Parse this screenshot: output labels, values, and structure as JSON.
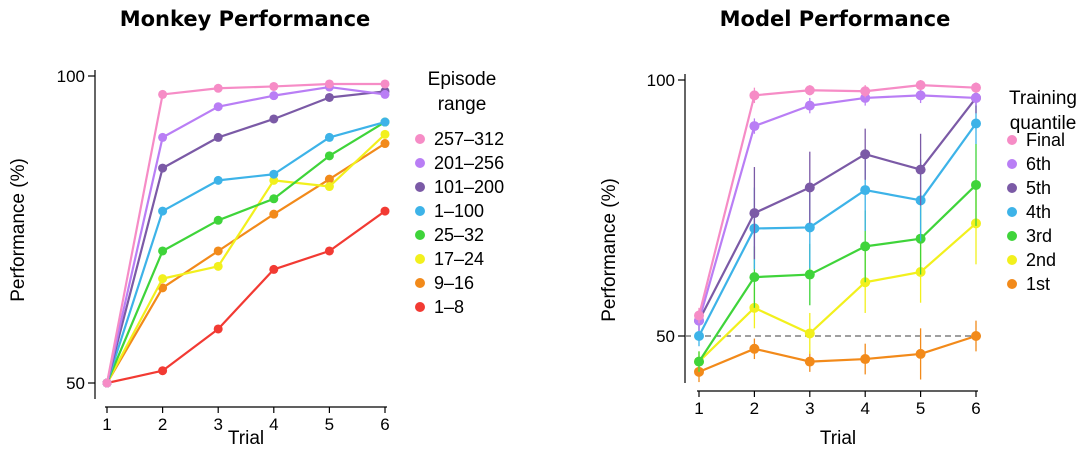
{
  "chart_data": [
    {
      "type": "line",
      "title": "Monkey Performance",
      "xlabel": "Trial",
      "ylabel": "Performance (%)",
      "x": [
        1,
        2,
        3,
        4,
        5,
        6
      ],
      "xticks": [
        "1",
        "2",
        "3",
        "4",
        "5",
        "6"
      ],
      "yticks": [
        "50",
        "100"
      ],
      "ylim": [
        50,
        100
      ],
      "legend_title": [
        "Episode",
        "range"
      ],
      "legend_position": "right",
      "series": [
        {
          "name": "257–312",
          "color": "#f68cc6",
          "values": [
            50,
            97,
            98,
            98.3,
            98.7,
            98.7
          ]
        },
        {
          "name": "201–256",
          "color": "#b97ef5",
          "values": [
            50,
            90,
            95,
            96.8,
            98.2,
            97
          ]
        },
        {
          "name": "101–200",
          "color": "#7b5aa6",
          "values": [
            50,
            85,
            90,
            93,
            96.5,
            97.5
          ]
        },
        {
          "name": "1–100",
          "color": "#3db3e8",
          "values": [
            50,
            78,
            83,
            84,
            90,
            92.5
          ]
        },
        {
          "name": "25–32",
          "color": "#3fd43a",
          "values": [
            50,
            71.5,
            76.5,
            80,
            87,
            92.5
          ]
        },
        {
          "name": "17–24",
          "color": "#f2f01d",
          "values": [
            50,
            67,
            69,
            83,
            82,
            90.5
          ]
        },
        {
          "name": "9–16",
          "color": "#f28a1a",
          "values": [
            50,
            65.5,
            71.5,
            77.5,
            83.2,
            89
          ]
        },
        {
          "name": "1–8",
          "color": "#f23a33",
          "values": [
            50,
            52,
            58.8,
            68.5,
            71.5,
            78
          ]
        }
      ]
    },
    {
      "type": "line",
      "title": "Model Performance",
      "xlabel": "Trial",
      "ylabel": "Performance (%)",
      "x": [
        1,
        2,
        3,
        4,
        5,
        6
      ],
      "xticks": [
        "1",
        "2",
        "3",
        "4",
        "5",
        "6"
      ],
      "yticks": [
        "50",
        "100"
      ],
      "ylim": [
        45,
        100
      ],
      "reference_line": 50,
      "legend_title": [
        "Training",
        "quantile"
      ],
      "legend_position": "right",
      "series": [
        {
          "name": "Final",
          "color": "#f68cc6",
          "values": [
            54,
            97,
            98,
            97.8,
            99,
            98.5
          ],
          "errors": [
            1.5,
            1.5,
            1,
            1.2,
            1,
            1
          ]
        },
        {
          "name": "6th",
          "color": "#b97ef5",
          "values": [
            53,
            91,
            95,
            96.5,
            97,
            96.5
          ],
          "errors": [
            2,
            1.5,
            1.5,
            1.5,
            1.5,
            1.5
          ]
        },
        {
          "name": "5th",
          "color": "#7b5aa6",
          "values": [
            53,
            74,
            79,
            85.5,
            82.5,
            96.5
          ],
          "errors": [
            2,
            9,
            7,
            5,
            7,
            3
          ]
        },
        {
          "name": "4th",
          "color": "#3db3e8",
          "values": [
            50,
            71,
            71.2,
            78.5,
            76.5,
            91.5
          ],
          "errors": [
            2,
            8,
            8,
            8,
            8,
            4
          ]
        },
        {
          "name": "3rd",
          "color": "#3fd43a",
          "values": [
            45,
            61.5,
            62,
            67.5,
            69,
            79.5
          ],
          "errors": [
            2,
            6,
            6,
            7,
            7,
            8
          ]
        },
        {
          "name": "2nd",
          "color": "#f2f01d",
          "values": [
            45,
            55.5,
            50.5,
            60.5,
            62.5,
            72
          ],
          "errors": [
            2,
            4,
            4,
            6,
            6,
            8
          ]
        },
        {
          "name": "1st",
          "color": "#f28a1a",
          "values": [
            43,
            47.5,
            45,
            45.5,
            46.5,
            50
          ],
          "errors": [
            2,
            2,
            2,
            3,
            5,
            3
          ]
        }
      ]
    }
  ]
}
